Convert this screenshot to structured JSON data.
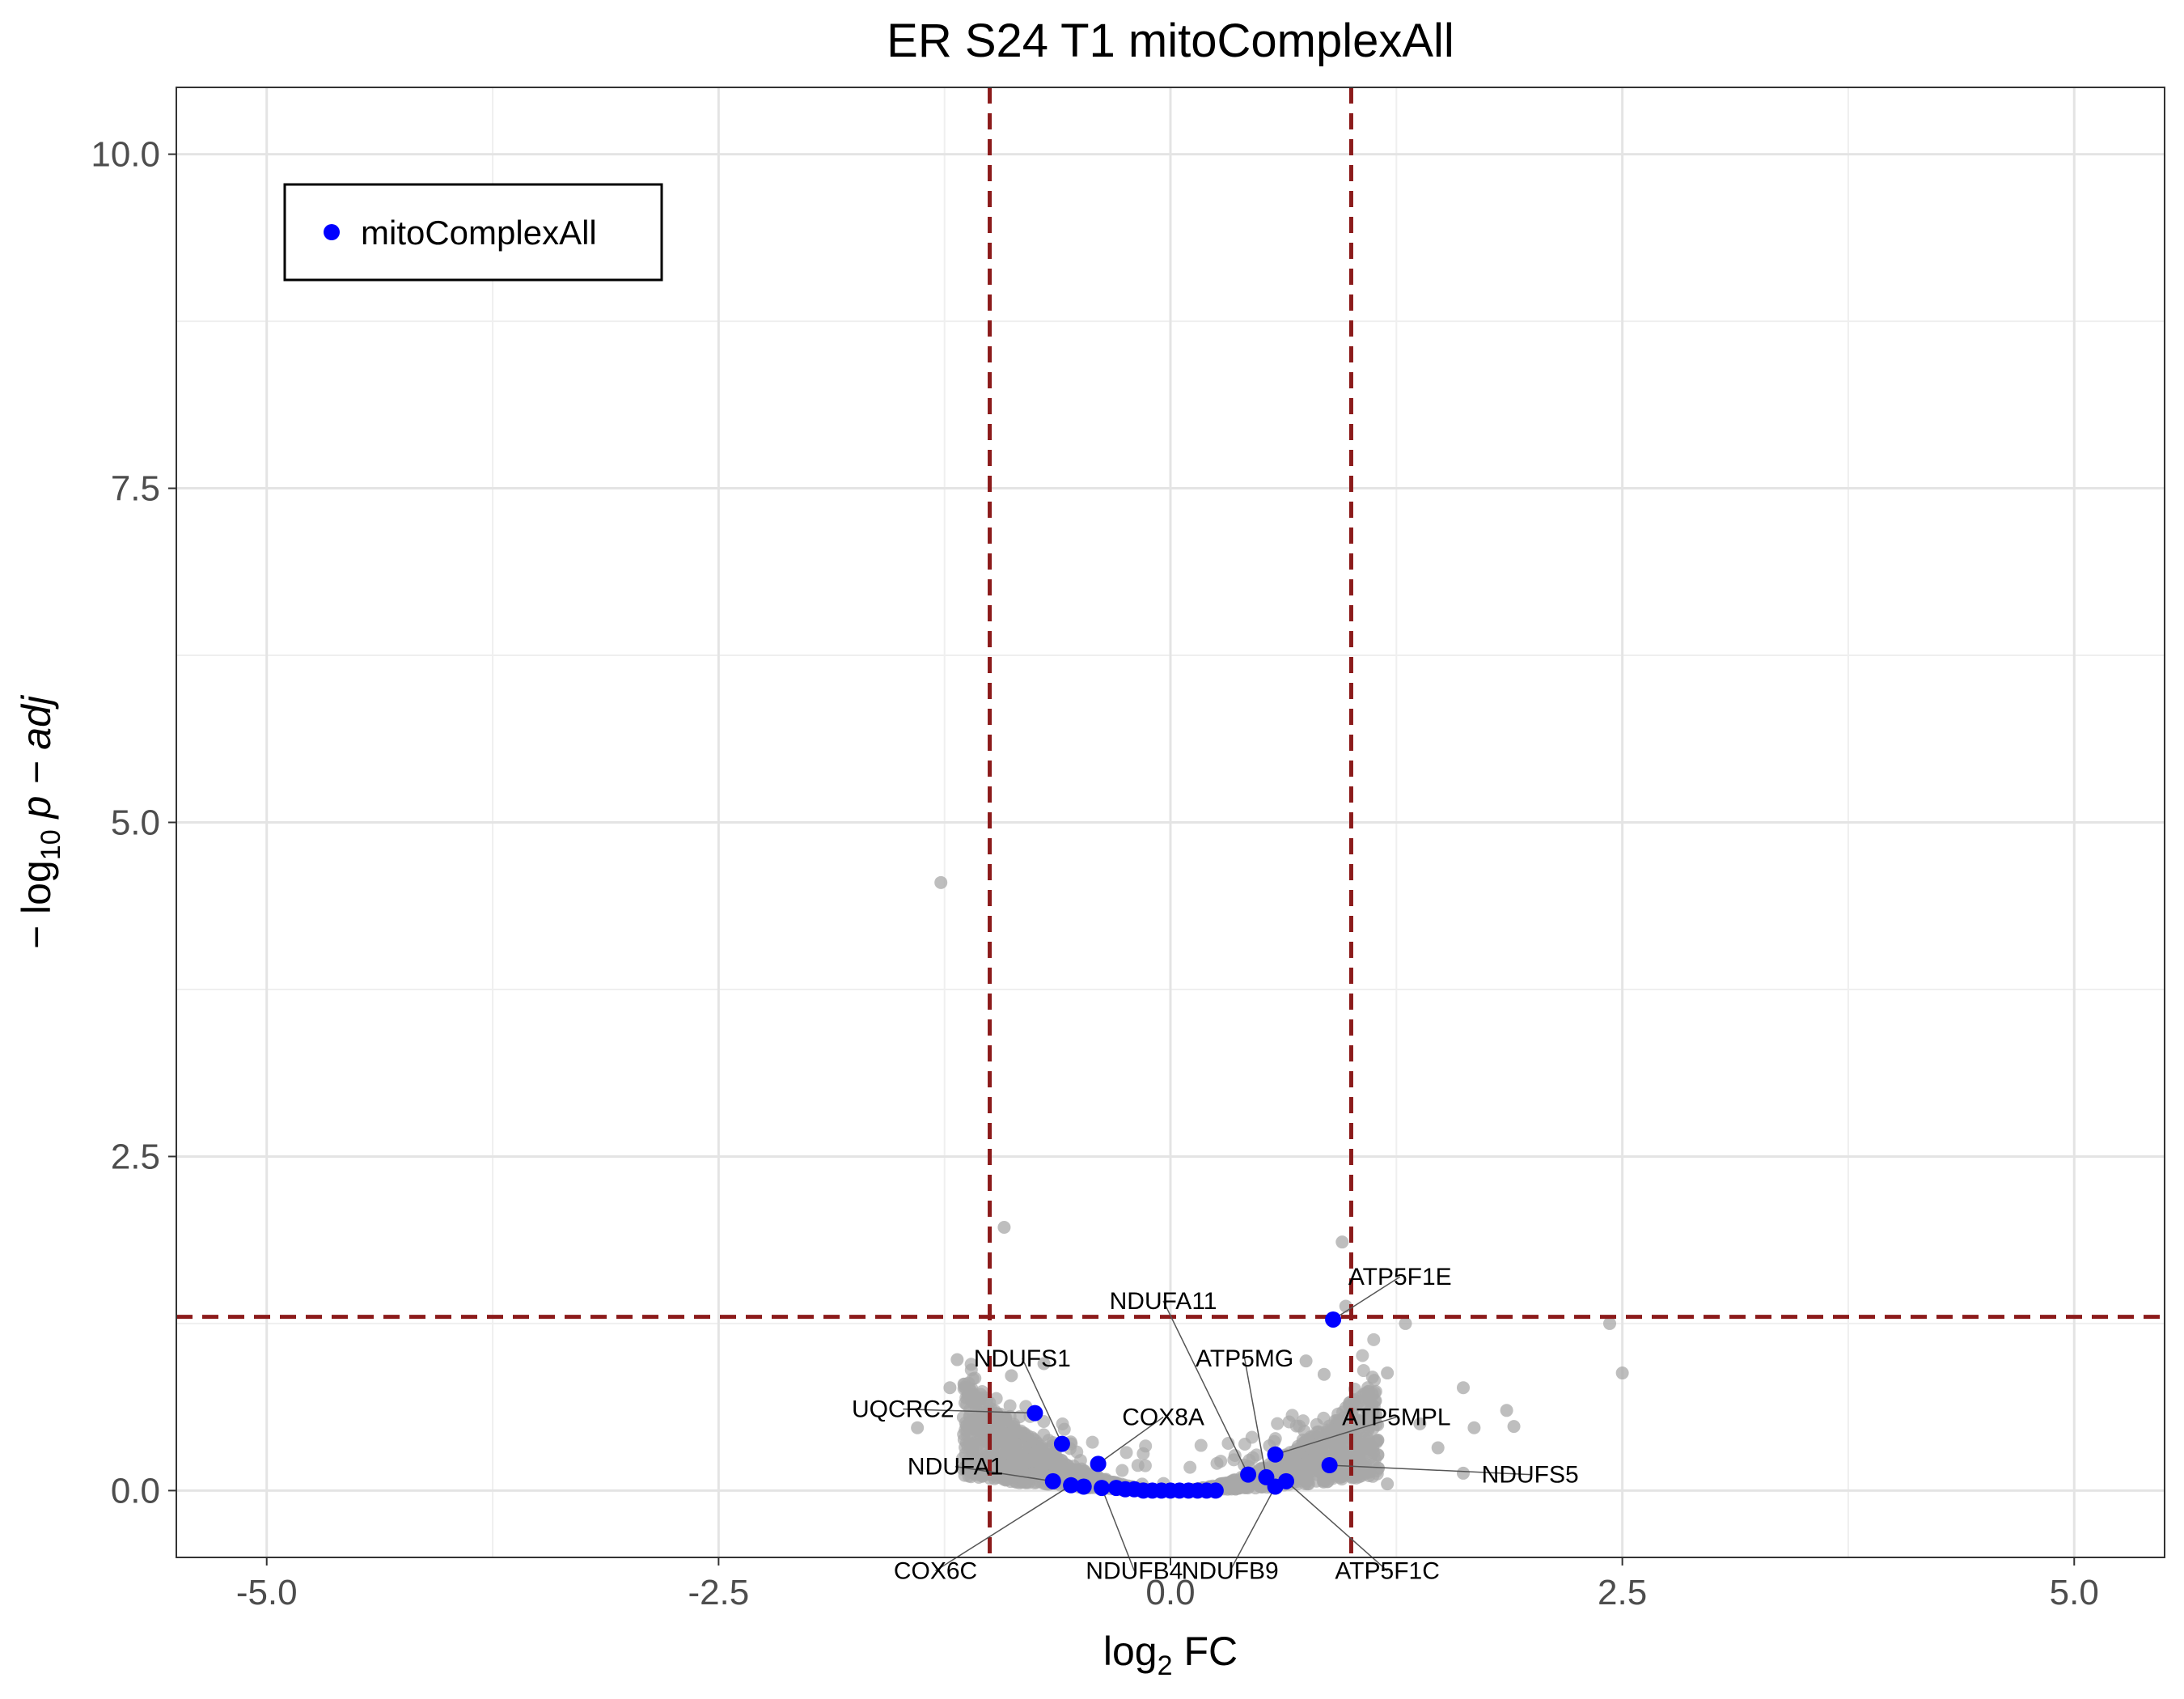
{
  "chart_data": {
    "type": "scatter",
    "title": "ER S24 T1 mitoComplexAll",
    "xlabel": {
      "main": "log",
      "sub": "2",
      "rest": " FC"
    },
    "ylabel": {
      "prefix": "− log",
      "sub": "10",
      "rest": " p − adj"
    },
    "xlim": [
      -5.5,
      5.5
    ],
    "ylim": [
      -0.5,
      10.5
    ],
    "x_ticks": [
      -5.0,
      -2.5,
      0.0,
      2.5,
      5.0
    ],
    "x_tick_labels": [
      "-5.0",
      "-2.5",
      "0.0",
      "2.5",
      "5.0"
    ],
    "y_ticks": [
      0.0,
      2.5,
      5.0,
      7.5,
      10.0
    ],
    "y_tick_labels": [
      "0.0",
      "2.5",
      "5.0",
      "7.5",
      "10.0"
    ],
    "grid": true,
    "threshold_lines": {
      "x": [
        -1,
        1
      ],
      "y": 1.3,
      "color": "#8b1a1a"
    },
    "legend": {
      "position": "top-left",
      "entries": [
        {
          "name": "mitoComplexAll",
          "color": "#0000ff"
        }
      ]
    },
    "colors": {
      "background_genes": "#a8a8a8",
      "highlight": "#0000ff"
    },
    "series": [
      {
        "name": "mitoComplexAll",
        "points": [
          {
            "x": -0.75,
            "y": 0.58
          },
          {
            "x": -0.6,
            "y": 0.35
          },
          {
            "x": -0.4,
            "y": 0.2
          },
          {
            "x": -0.65,
            "y": 0.07
          },
          {
            "x": -0.55,
            "y": 0.04
          },
          {
            "x": -0.48,
            "y": 0.03
          },
          {
            "x": -0.38,
            "y": 0.02
          },
          {
            "x": -0.3,
            "y": 0.02
          },
          {
            "x": -0.25,
            "y": 0.01
          },
          {
            "x": -0.2,
            "y": 0.01
          },
          {
            "x": -0.15,
            "y": 0.0
          },
          {
            "x": -0.1,
            "y": 0.0
          },
          {
            "x": -0.05,
            "y": 0.0
          },
          {
            "x": 0.0,
            "y": 0.0
          },
          {
            "x": 0.05,
            "y": 0.0
          },
          {
            "x": 0.1,
            "y": 0.0
          },
          {
            "x": 0.15,
            "y": 0.0
          },
          {
            "x": 0.2,
            "y": 0.0
          },
          {
            "x": 0.25,
            "y": 0.0
          },
          {
            "x": 0.43,
            "y": 0.12
          },
          {
            "x": 0.53,
            "y": 0.1
          },
          {
            "x": 0.58,
            "y": 0.27
          },
          {
            "x": 0.58,
            "y": 0.03
          },
          {
            "x": 0.64,
            "y": 0.07
          },
          {
            "x": 0.88,
            "y": 0.19
          },
          {
            "x": 0.9,
            "y": 1.28
          }
        ]
      }
    ],
    "gene_labels": [
      {
        "text": "ATP5F1E",
        "gene_x": 0.9,
        "gene_y": 1.28,
        "label_x": 1.27,
        "label_y": 1.6,
        "line": true
      },
      {
        "text": "NDUFA11",
        "gene_x": 0.43,
        "gene_y": 0.12,
        "label_x": -0.04,
        "label_y": 1.42,
        "line": true
      },
      {
        "text": "ATP5MG",
        "gene_x": 0.53,
        "gene_y": 0.1,
        "label_x": 0.41,
        "label_y": 0.99,
        "line": true
      },
      {
        "text": "NDUFS1",
        "gene_x": -0.6,
        "gene_y": 0.35,
        "label_x": -0.82,
        "label_y": 0.99,
        "line": true
      },
      {
        "text": "UQCRC2",
        "gene_x": -0.75,
        "gene_y": 0.58,
        "label_x": -1.48,
        "label_y": 0.61,
        "line": true
      },
      {
        "text": "COX8A",
        "gene_x": -0.4,
        "gene_y": 0.2,
        "label_x": -0.04,
        "label_y": 0.55,
        "line": true
      },
      {
        "text": "ATP5MPL",
        "gene_x": 0.58,
        "gene_y": 0.27,
        "label_x": 1.25,
        "label_y": 0.55,
        "line": true
      },
      {
        "text": "NDUFA1",
        "gene_x": -0.65,
        "gene_y": 0.07,
        "label_x": -1.19,
        "label_y": 0.18,
        "line": true
      },
      {
        "text": "NDUFS5",
        "gene_x": 0.88,
        "gene_y": 0.19,
        "label_x": 1.99,
        "label_y": 0.12,
        "line": true
      },
      {
        "text": "COX6C",
        "gene_x": -0.55,
        "gene_y": 0.04,
        "label_x": -1.3,
        "label_y": -0.6,
        "line": true
      },
      {
        "text": "NDUFB4",
        "gene_x": -0.38,
        "gene_y": 0.02,
        "label_x": -0.2,
        "label_y": -0.6,
        "line": true
      },
      {
        "text": "NDUFB9",
        "gene_x": 0.58,
        "gene_y": 0.03,
        "label_x": 0.33,
        "label_y": -0.6,
        "line": true
      },
      {
        "text": "ATP5F1C",
        "gene_x": 0.64,
        "gene_y": 0.07,
        "label_x": 1.2,
        "label_y": -0.6,
        "line": true
      }
    ]
  }
}
